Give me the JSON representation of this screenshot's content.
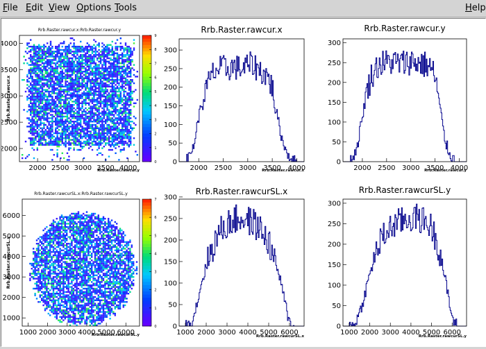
{
  "menus": [
    {
      "id": "file",
      "first": "F",
      "rest": "ile"
    },
    {
      "id": "edit",
      "first": "E",
      "rest": "dit"
    },
    {
      "id": "view",
      "first": "V",
      "rest": "iew"
    },
    {
      "id": "options",
      "first": "O",
      "rest": "ptions"
    },
    {
      "id": "tools",
      "first": "T",
      "rest": "ools"
    },
    {
      "id": "help",
      "first": "H",
      "rest": "elp"
    }
  ],
  "colors": {
    "hist_line": "#00008b",
    "axis": "#000000"
  },
  "panels": [
    {
      "id": "p1",
      "type": "heatmap",
      "shape": "rect",
      "title": "Rrb.Raster.rawcur.x:Rrb.Raster.rawcur.y",
      "xlabel": "Rrb.Raster.rawcur.y",
      "ylabel": "Rrb.Raster.rawcur.x",
      "xlim": [
        1600,
        4250
      ],
      "ylim": [
        1750,
        4150
      ],
      "xticks": [
        "2000",
        "2500",
        "3000",
        "3500",
        "4000"
      ],
      "yticks": [
        "2000",
        "2500",
        "3000",
        "3500",
        "4000"
      ],
      "zmax": 9,
      "zticks": [
        "0",
        "1",
        "2",
        "3",
        "4",
        "5",
        "6",
        "7",
        "8",
        "9"
      ]
    },
    {
      "id": "p2",
      "type": "histogram",
      "title": "Rrb.Raster.rawcur.x",
      "xlabel": "Rrb.Raster.rawcur.x",
      "xlim": [
        1600,
        4150
      ],
      "ylim": [
        0,
        330
      ],
      "xticks": [
        "2000",
        "2500",
        "3000",
        "3500",
        "4000"
      ],
      "yticks": [
        "0",
        "50",
        "100",
        "150",
        "200",
        "250",
        "300"
      ],
      "profile": {
        "x": [
          1700,
          1800,
          1900,
          2000,
          2100,
          2200,
          2300,
          2400,
          2500,
          2600,
          2700,
          2800,
          2900,
          3000,
          3100,
          3200,
          3300,
          3400,
          3500,
          3600,
          3700,
          3800,
          3900,
          4000
        ],
        "y": [
          0,
          10,
          45,
          120,
          175,
          210,
          240,
          248,
          252,
          250,
          255,
          252,
          250,
          258,
          262,
          250,
          240,
          230,
          200,
          125,
          60,
          25,
          5,
          0
        ]
      }
    },
    {
      "id": "p3",
      "type": "histogram",
      "title": "Rrb.Raster.rawcur.y",
      "xlabel": "Rrb.Raster.rawcur.y",
      "xlim": [
        1600,
        4150
      ],
      "ylim": [
        0,
        310
      ],
      "xticks": [
        "2000",
        "2500",
        "3000",
        "3500",
        "4000"
      ],
      "yticks": [
        "0",
        "50",
        "100",
        "150",
        "200",
        "250",
        "300"
      ],
      "profile": {
        "x": [
          1700,
          1800,
          1900,
          2000,
          2100,
          2200,
          2300,
          2400,
          2500,
          2600,
          2700,
          2800,
          2900,
          3000,
          3100,
          3200,
          3300,
          3400,
          3500,
          3600,
          3700,
          3800,
          3900,
          4000
        ],
        "y": [
          0,
          8,
          40,
          115,
          180,
          220,
          240,
          248,
          250,
          252,
          250,
          248,
          250,
          255,
          250,
          248,
          245,
          240,
          215,
          140,
          55,
          20,
          4,
          0
        ]
      }
    },
    {
      "id": "p4",
      "type": "heatmap",
      "shape": "ellipse",
      "title": "Rrb.Raster.rawcurSL.x:Rrb.Raster.rawcurSL.y",
      "xlabel": "Rrb.Raster.rawcurSL.y",
      "ylabel": "Rrb.Raster.rawcurSL.x",
      "xlim": [
        700,
        6700
      ],
      "ylim": [
        600,
        6800
      ],
      "xticks": [
        "1000",
        "2000",
        "3000",
        "4000",
        "5000",
        "6000"
      ],
      "yticks": [
        "1000",
        "2000",
        "3000",
        "4000",
        "5000",
        "6000"
      ],
      "zmax": 7,
      "zticks": [
        "0",
        "1",
        "2",
        "3",
        "4",
        "5",
        "6",
        "7"
      ]
    },
    {
      "id": "p5",
      "type": "histogram",
      "title": "Rrb.Raster.rawcurSL.x",
      "xlabel": "Rrb.Raster.rawcurSL.x",
      "xlim": [
        700,
        6700
      ],
      "ylim": [
        0,
        295
      ],
      "xticks": [
        "1000",
        "2000",
        "3000",
        "4000",
        "5000",
        "6000"
      ],
      "yticks": [
        "0",
        "50",
        "100",
        "150",
        "200",
        "250",
        "300"
      ],
      "profile": {
        "x": [
          1000,
          1250,
          1500,
          1750,
          2000,
          2250,
          2500,
          2750,
          3000,
          3250,
          3500,
          3750,
          4000,
          4250,
          4500,
          4750,
          5000,
          5250,
          5500,
          5750,
          6000,
          6250
        ],
        "y": [
          0,
          5,
          40,
          95,
          140,
          175,
          205,
          225,
          235,
          245,
          248,
          250,
          245,
          240,
          230,
          215,
          195,
          160,
          120,
          60,
          10,
          0
        ]
      }
    },
    {
      "id": "p6",
      "type": "histogram",
      "title": "Rrb.Raster.rawcurSL.y",
      "xlabel": "Rrb.Raster.rawcurSL.y",
      "xlim": [
        700,
        6700
      ],
      "ylim": [
        0,
        310
      ],
      "xticks": [
        "1000",
        "2000",
        "3000",
        "4000",
        "5000",
        "6000"
      ],
      "yticks": [
        "0",
        "50",
        "100",
        "150",
        "200",
        "250",
        "300"
      ],
      "profile": {
        "x": [
          1000,
          1250,
          1500,
          1750,
          2000,
          2250,
          2500,
          2750,
          3000,
          3250,
          3500,
          3750,
          4000,
          4250,
          4500,
          4750,
          5000,
          5250,
          5500,
          5750,
          6000,
          6250
        ],
        "y": [
          0,
          4,
          30,
          75,
          125,
          170,
          205,
          225,
          240,
          250,
          255,
          260,
          262,
          265,
          260,
          255,
          240,
          210,
          160,
          90,
          20,
          0
        ]
      }
    }
  ]
}
